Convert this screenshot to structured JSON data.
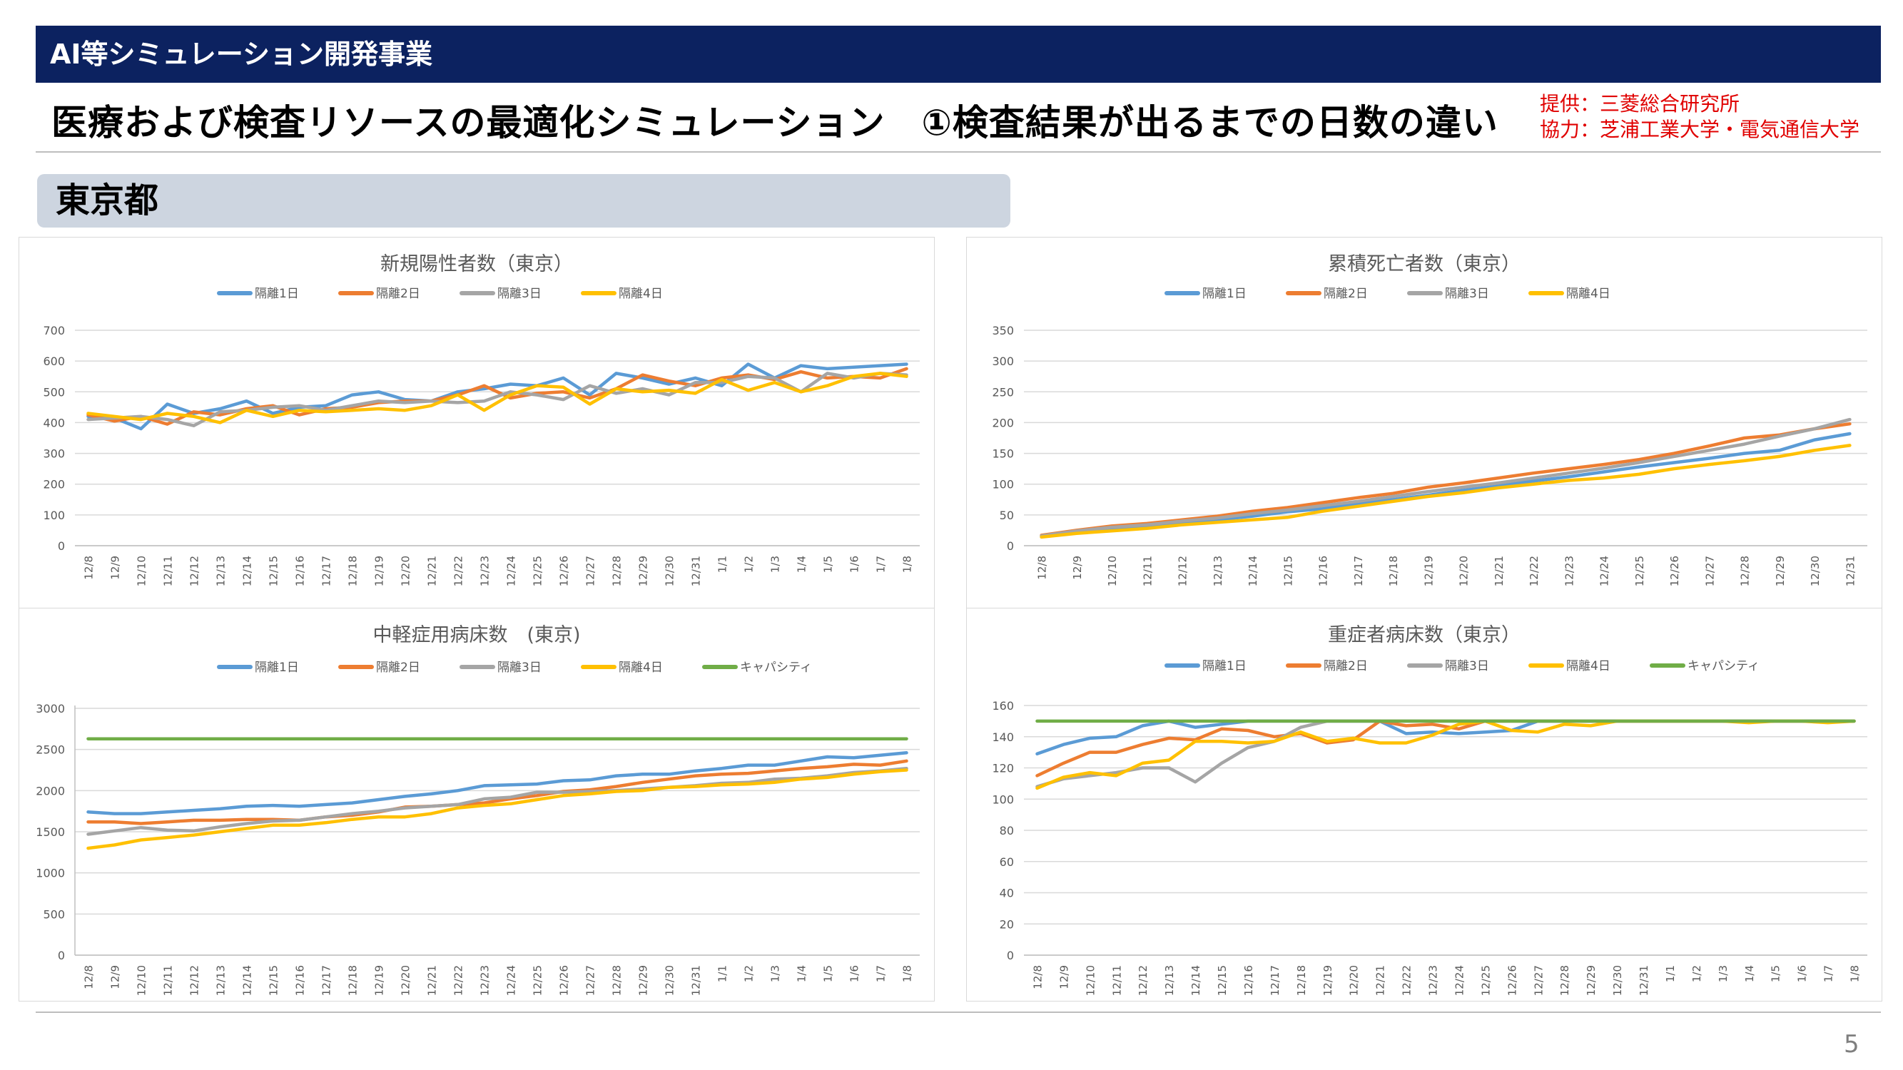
{
  "header": {
    "banner": "AI等シミュレーション開発事業",
    "title": "医療および検査リソースの最適化シミュレーション　①検査結果が出るまでの日数の違い",
    "credit_provider": "提供：三菱総合研究所",
    "credit_cooperation": "協力：芝浦工業大学・電気通信大学",
    "region": "東京都"
  },
  "page_number": "5",
  "chart_data": [
    {
      "id": "new-positives",
      "type": "line",
      "title": "新規陽性者数（東京）",
      "categories": [
        "12/8",
        "12/9",
        "12/10",
        "12/11",
        "12/12",
        "12/13",
        "12/14",
        "12/15",
        "12/16",
        "12/17",
        "12/18",
        "12/19",
        "12/20",
        "12/21",
        "12/22",
        "12/23",
        "12/24",
        "12/25",
        "12/26",
        "12/27",
        "12/28",
        "12/29",
        "12/30",
        "12/31",
        "1/1",
        "1/2",
        "1/3",
        "1/4",
        "1/5",
        "1/6",
        "1/7",
        "1/8"
      ],
      "ylim": [
        0,
        700
      ],
      "yticks": [
        0,
        100,
        200,
        300,
        400,
        500,
        600,
        700
      ],
      "grid": true,
      "legend": "top",
      "series": [
        {
          "name": "隔離1日",
          "color": "#5b9bd5",
          "values": [
            420,
            415,
            380,
            460,
            430,
            445,
            470,
            430,
            450,
            455,
            490,
            500,
            475,
            470,
            500,
            510,
            525,
            520,
            545,
            490,
            560,
            545,
            525,
            545,
            520,
            590,
            545,
            585,
            575,
            580,
            585,
            590
          ]
        },
        {
          "name": "隔離2日",
          "color": "#ed7d31",
          "values": [
            425,
            405,
            420,
            395,
            435,
            425,
            445,
            455,
            425,
            445,
            450,
            465,
            470,
            470,
            490,
            520,
            480,
            495,
            500,
            480,
            510,
            555,
            535,
            520,
            545,
            555,
            540,
            565,
            545,
            550,
            545,
            575
          ]
        },
        {
          "name": "隔離3日",
          "color": "#a5a5a5",
          "values": [
            410,
            415,
            420,
            410,
            390,
            435,
            440,
            450,
            455,
            440,
            455,
            470,
            465,
            470,
            465,
            470,
            500,
            490,
            475,
            520,
            495,
            510,
            490,
            530,
            530,
            550,
            545,
            500,
            560,
            545,
            560,
            555
          ]
        },
        {
          "name": "隔離4日",
          "color": "#ffc000",
          "values": [
            430,
            420,
            410,
            430,
            420,
            400,
            440,
            420,
            440,
            435,
            440,
            445,
            440,
            455,
            490,
            440,
            490,
            520,
            515,
            460,
            510,
            500,
            505,
            495,
            540,
            505,
            530,
            500,
            520,
            550,
            560,
            550
          ]
        }
      ]
    },
    {
      "id": "cumulative-deaths",
      "type": "line",
      "title": "累積死亡者数（東京）",
      "categories": [
        "12/8",
        "12/9",
        "12/10",
        "12/11",
        "12/12",
        "12/13",
        "12/14",
        "12/15",
        "12/16",
        "12/17",
        "12/18",
        "12/19",
        "12/20",
        "12/21",
        "12/22",
        "12/23",
        "12/24",
        "12/25",
        "12/26",
        "12/27",
        "12/28",
        "12/29",
        "12/30",
        "12/31"
      ],
      "ylim": [
        0,
        350
      ],
      "yticks": [
        0,
        50,
        100,
        150,
        200,
        250,
        300,
        350
      ],
      "grid": true,
      "legend": "top",
      "series": [
        {
          "name": "隔離1日",
          "color": "#5b9bd5",
          "values": [
            15,
            22,
            28,
            32,
            38,
            42,
            48,
            55,
            60,
            68,
            75,
            82,
            90,
            97,
            105,
            112,
            120,
            128,
            135,
            142,
            150,
            155,
            172,
            182
          ]
        },
        {
          "name": "隔離2日",
          "color": "#ed7d31",
          "values": [
            17,
            25,
            32,
            36,
            42,
            48,
            56,
            62,
            70,
            78,
            85,
            95,
            102,
            110,
            118,
            125,
            132,
            140,
            150,
            162,
            175,
            180,
            190,
            198
          ]
        },
        {
          "name": "隔離3日",
          "color": "#a5a5a5",
          "values": [
            16,
            24,
            30,
            34,
            40,
            45,
            52,
            58,
            65,
            72,
            80,
            88,
            95,
            102,
            110,
            118,
            126,
            135,
            145,
            155,
            165,
            178,
            190,
            205
          ]
        },
        {
          "name": "隔離4日",
          "color": "#ffc000",
          "values": [
            14,
            20,
            24,
            28,
            34,
            38,
            42,
            46,
            56,
            64,
            72,
            80,
            86,
            94,
            100,
            106,
            110,
            116,
            125,
            132,
            138,
            145,
            155,
            163
          ]
        }
      ]
    },
    {
      "id": "moderate-beds",
      "type": "line",
      "title": "中軽症用病床数　(東京)",
      "categories": [
        "12/8",
        "12/9",
        "12/10",
        "12/11",
        "12/12",
        "12/13",
        "12/14",
        "12/15",
        "12/16",
        "12/17",
        "12/18",
        "12/19",
        "12/20",
        "12/21",
        "12/22",
        "12/23",
        "12/24",
        "12/25",
        "12/26",
        "12/27",
        "12/28",
        "12/29",
        "12/30",
        "12/31",
        "1/1",
        "1/2",
        "1/3",
        "1/4",
        "1/5",
        "1/6",
        "1/7",
        "1/8"
      ],
      "ylim": [
        0,
        3000
      ],
      "yticks": [
        0,
        500,
        1000,
        1500,
        2000,
        2500,
        3000
      ],
      "grid": true,
      "legend": "top",
      "series": [
        {
          "name": "隔離1日",
          "color": "#5b9bd5",
          "values": [
            1740,
            1720,
            1720,
            1740,
            1760,
            1780,
            1810,
            1820,
            1810,
            1830,
            1850,
            1890,
            1930,
            1960,
            2000,
            2060,
            2070,
            2080,
            2120,
            2130,
            2180,
            2200,
            2200,
            2240,
            2270,
            2310,
            2310,
            2360,
            2410,
            2400,
            2430,
            2460
          ]
        },
        {
          "name": "隔離2日",
          "color": "#ed7d31",
          "values": [
            1620,
            1620,
            1600,
            1620,
            1640,
            1640,
            1650,
            1650,
            1640,
            1680,
            1700,
            1740,
            1800,
            1810,
            1830,
            1850,
            1900,
            1940,
            1990,
            2010,
            2050,
            2100,
            2140,
            2180,
            2200,
            2210,
            2240,
            2270,
            2290,
            2320,
            2310,
            2360
          ]
        },
        {
          "name": "隔離3日",
          "color": "#a5a5a5",
          "values": [
            1470,
            1510,
            1550,
            1520,
            1510,
            1560,
            1600,
            1630,
            1640,
            1680,
            1720,
            1750,
            1790,
            1810,
            1830,
            1900,
            1920,
            1980,
            1980,
            1990,
            2000,
            2020,
            2040,
            2060,
            2090,
            2100,
            2140,
            2150,
            2180,
            2220,
            2240,
            2270
          ]
        },
        {
          "name": "隔離4日",
          "color": "#ffc000",
          "values": [
            1300,
            1340,
            1400,
            1430,
            1460,
            1500,
            1540,
            1580,
            1580,
            1610,
            1650,
            1680,
            1680,
            1720,
            1790,
            1820,
            1840,
            1890,
            1940,
            1960,
            1990,
            2000,
            2040,
            2050,
            2070,
            2080,
            2100,
            2140,
            2160,
            2200,
            2230,
            2250
          ]
        },
        {
          "name": "キャパシティ",
          "color": "#70ad47",
          "values": [
            2630,
            2630,
            2630,
            2630,
            2630,
            2630,
            2630,
            2630,
            2630,
            2630,
            2630,
            2630,
            2630,
            2630,
            2630,
            2630,
            2630,
            2630,
            2630,
            2630,
            2630,
            2630,
            2630,
            2630,
            2630,
            2630,
            2630,
            2630,
            2630,
            2630,
            2630,
            2630
          ]
        }
      ]
    },
    {
      "id": "severe-beds",
      "type": "line",
      "title": "重症者病床数（東京）",
      "categories": [
        "12/8",
        "12/9",
        "12/10",
        "12/11",
        "12/12",
        "12/13",
        "12/14",
        "12/15",
        "12/16",
        "12/17",
        "12/18",
        "12/19",
        "12/20",
        "12/21",
        "12/22",
        "12/23",
        "12/24",
        "12/25",
        "12/26",
        "12/27",
        "12/28",
        "12/29",
        "12/30",
        "12/31",
        "1/1",
        "1/2",
        "1/3",
        "1/4",
        "1/5",
        "1/6",
        "1/7",
        "1/8"
      ],
      "ylim": [
        0,
        160
      ],
      "yticks": [
        0,
        20,
        40,
        60,
        80,
        100,
        120,
        140,
        160
      ],
      "grid": true,
      "legend": "top",
      "series": [
        {
          "name": "隔離1日",
          "color": "#5b9bd5",
          "values": [
            129,
            135,
            139,
            140,
            147,
            150,
            146,
            148,
            150,
            150,
            150,
            150,
            150,
            150,
            142,
            143,
            142,
            143,
            144,
            150,
            150,
            150,
            150,
            150,
            150,
            150,
            150,
            150,
            150,
            150,
            150,
            150
          ]
        },
        {
          "name": "隔離2日",
          "color": "#ed7d31",
          "values": [
            115,
            123,
            130,
            130,
            135,
            139,
            138,
            145,
            144,
            140,
            142,
            136,
            138,
            150,
            147,
            148,
            145,
            150,
            150,
            150,
            150,
            150,
            150,
            150,
            150,
            150,
            150,
            150,
            150,
            150,
            150,
            150
          ]
        },
        {
          "name": "隔離3日",
          "color": "#a5a5a5",
          "values": [
            108,
            113,
            115,
            117,
            120,
            120,
            111,
            123,
            133,
            137,
            146,
            150,
            150,
            150,
            150,
            150,
            150,
            150,
            150,
            150,
            150,
            150,
            150,
            150,
            150,
            150,
            150,
            150,
            150,
            150,
            150,
            150
          ]
        },
        {
          "name": "隔離4日",
          "color": "#ffc000",
          "values": [
            107,
            114,
            117,
            115,
            123,
            125,
            137,
            137,
            136,
            137,
            143,
            137,
            139,
            136,
            136,
            141,
            148,
            150,
            144,
            143,
            148,
            147,
            150,
            150,
            150,
            150,
            150,
            149,
            150,
            150,
            149,
            150
          ]
        },
        {
          "name": "キャパシティ",
          "color": "#70ad47",
          "values": [
            150,
            150,
            150,
            150,
            150,
            150,
            150,
            150,
            150,
            150,
            150,
            150,
            150,
            150,
            150,
            150,
            150,
            150,
            150,
            150,
            150,
            150,
            150,
            150,
            150,
            150,
            150,
            150,
            150,
            150,
            150,
            150
          ]
        }
      ]
    }
  ]
}
